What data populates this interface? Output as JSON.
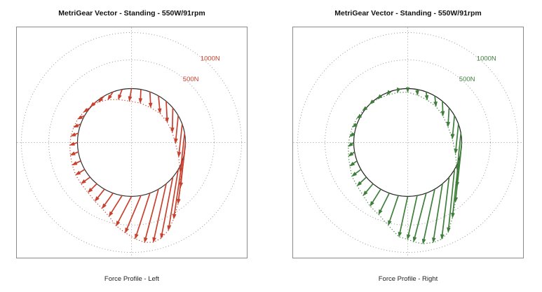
{
  "page": {
    "background": "#ffffff"
  },
  "chart_data": [
    {
      "type": "polar-force-vectors",
      "side": "left",
      "title": "MetriGear Vector - Standing - 550W/91rpm",
      "caption": "Force Profile - Left",
      "color": "#c8402e",
      "axis_color": "#9a9a9a",
      "crank_circle_color": "#333333",
      "rings": [
        {
          "label": "500N",
          "force_n": 500
        },
        {
          "label": "1000N",
          "force_n": 1000
        }
      ],
      "angles_deg": [
        0,
        10,
        20,
        30,
        40,
        50,
        60,
        70,
        80,
        90,
        100,
        110,
        120,
        130,
        140,
        150,
        160,
        170,
        180,
        190,
        200,
        210,
        220,
        230,
        240,
        250,
        260,
        270,
        280,
        290,
        300,
        310,
        320,
        330,
        340,
        350
      ],
      "forces_n": [
        [
          -40,
          230
        ],
        [
          -10,
          250
        ],
        [
          15,
          290
        ],
        [
          30,
          320
        ],
        [
          20,
          390
        ],
        [
          -10,
          450
        ],
        [
          -50,
          510
        ],
        [
          -65,
          600
        ],
        [
          -80,
          720
        ],
        [
          -90,
          820
        ],
        [
          -120,
          950
        ],
        [
          -155,
          1060
        ],
        [
          -180,
          1115
        ],
        [
          -215,
          1120
        ],
        [
          -235,
          1070
        ],
        [
          -255,
          975
        ],
        [
          -270,
          835
        ],
        [
          -285,
          680
        ],
        [
          -280,
          540
        ],
        [
          -240,
          380
        ],
        [
          -200,
          280
        ],
        [
          -175,
          220
        ],
        [
          -160,
          160
        ],
        [
          -165,
          120
        ],
        [
          -165,
          100
        ],
        [
          -155,
          75
        ],
        [
          -145,
          60
        ],
        [
          -140,
          50
        ],
        [
          -135,
          55
        ],
        [
          -130,
          60
        ],
        [
          -128,
          65
        ],
        [
          -120,
          80
        ],
        [
          -115,
          100
        ],
        [
          -110,
          115
        ],
        [
          -95,
          145
        ],
        [
          -70,
          185
        ]
      ]
    },
    {
      "type": "polar-force-vectors",
      "side": "right",
      "title": "MetriGear Vector - Standing - 550W/91rpm",
      "caption": "Force Profile - Right",
      "color": "#3f7d3b",
      "axis_color": "#9a9a9a",
      "crank_circle_color": "#222222",
      "rings": [
        {
          "label": "500N",
          "force_n": 500
        },
        {
          "label": "1000N",
          "force_n": 1000
        }
      ],
      "angles_deg": [
        0,
        10,
        20,
        30,
        40,
        50,
        60,
        70,
        80,
        90,
        100,
        110,
        120,
        130,
        140,
        150,
        160,
        170,
        180,
        190,
        200,
        210,
        220,
        230,
        240,
        250,
        260,
        270,
        280,
        290,
        300,
        310,
        320,
        330,
        340,
        350
      ],
      "forces_n": [
        [
          0,
          65
        ],
        [
          10,
          105
        ],
        [
          20,
          150
        ],
        [
          25,
          195
        ],
        [
          10,
          270
        ],
        [
          -20,
          345
        ],
        [
          -40,
          425
        ],
        [
          -55,
          540
        ],
        [
          -70,
          680
        ],
        [
          -90,
          810
        ],
        [
          -100,
          920
        ],
        [
          -110,
          1040
        ],
        [
          -115,
          1150
        ],
        [
          -135,
          1135
        ],
        [
          -170,
          1075
        ],
        [
          -215,
          1000
        ],
        [
          -230,
          890
        ],
        [
          -175,
          800
        ],
        [
          -160,
          740
        ],
        [
          -185,
          545
        ],
        [
          -195,
          390
        ],
        [
          -195,
          310
        ],
        [
          -180,
          215
        ],
        [
          -170,
          160
        ],
        [
          -165,
          125
        ],
        [
          -130,
          95
        ],
        [
          -110,
          80
        ],
        [
          -100,
          75
        ],
        [
          -90,
          65
        ],
        [
          -85,
          55
        ],
        [
          -75,
          50
        ],
        [
          -70,
          50
        ],
        [
          -60,
          55
        ],
        [
          -55,
          60
        ],
        [
          -40,
          60
        ],
        [
          -20,
          60
        ]
      ]
    }
  ]
}
